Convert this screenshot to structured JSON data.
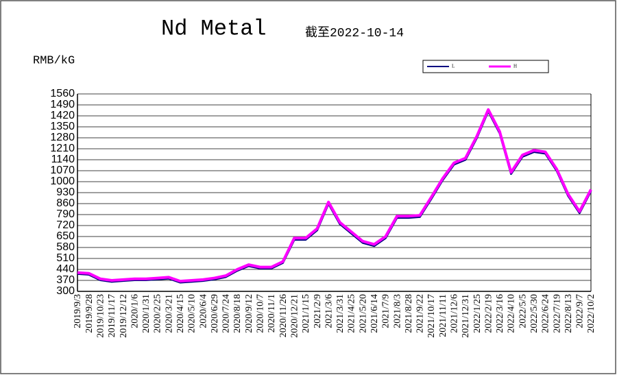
{
  "chart_data": {
    "type": "line",
    "title": "Nd Metal",
    "subtitle": "截至2022-10-14",
    "y_label": "RMB/kG",
    "categories": [
      "2019/9/3",
      "2019/9/28",
      "2019/10/23",
      "2019/11/17",
      "2019/12/12",
      "2020/1/6",
      "2020/1/31",
      "2020/2/25",
      "2020/3/21",
      "2020/4/15",
      "2020/5/10",
      "2020/6/4",
      "2020/6/29",
      "2020/7/24",
      "2020/8/18",
      "2020/9/12",
      "2020/10/7",
      "2020/11/1",
      "2020/11/26",
      "2020/12/21",
      "2021/1/15",
      "2021/2/9",
      "2021/3/6",
      "2021/3/31",
      "2021/4/25",
      "2021/5/20",
      "2021/6/14",
      "2021/7/9",
      "2021/8/3",
      "2021/8/28",
      "2021/9/22",
      "2021/10/17",
      "2021/11/11",
      "2021/12/6",
      "2021/12/31",
      "2022/1/25",
      "2022/2/19",
      "2022/3/16",
      "2022/4/10",
      "2022/5/5",
      "2022/5/30",
      "2022/6/24",
      "2022/7/19",
      "2022/8/13",
      "2022/9/7",
      "2022/10/2"
    ],
    "series": [
      {
        "name": "L",
        "color": "#000080",
        "values": [
          412,
          407,
          372,
          362,
          367,
          372,
          372,
          377,
          382,
          357,
          362,
          367,
          377,
          392,
          432,
          462,
          447,
          447,
          482,
          630,
          630,
          690,
          860,
          730,
          670,
          610,
          590,
          640,
          770,
          770,
          775,
          890,
          1010,
          1110,
          1140,
          1280,
          1450,
          1310,
          1050,
          1160,
          1190,
          1180,
          1070,
          910,
          800,
          940
        ]
      },
      {
        "name": "H",
        "color": "#ff00ff",
        "values": [
          420,
          415,
          380,
          370,
          375,
          380,
          380,
          385,
          390,
          365,
          370,
          375,
          385,
          400,
          440,
          470,
          455,
          455,
          490,
          640,
          640,
          700,
          870,
          740,
          680,
          620,
          600,
          650,
          780,
          780,
          785,
          900,
          1020,
          1120,
          1150,
          1290,
          1460,
          1320,
          1060,
          1170,
          1200,
          1190,
          1080,
          920,
          810,
          950
        ]
      }
    ],
    "ylim": [
      300,
      1560
    ],
    "yticks": [
      300,
      370,
      440,
      510,
      580,
      650,
      720,
      790,
      860,
      930,
      1000,
      1070,
      1140,
      1210,
      1280,
      1350,
      1420,
      1490,
      1560
    ],
    "grid": true
  }
}
